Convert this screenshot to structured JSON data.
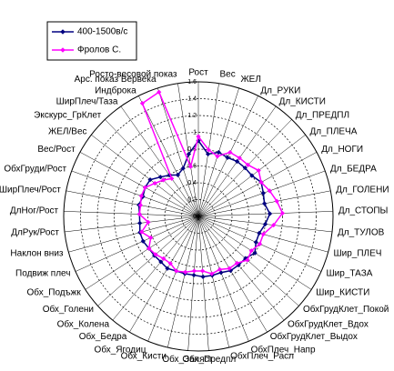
{
  "chart_data": {
    "type": "radar",
    "categories": [
      "Рост",
      "Вес",
      "ЖЕЛ",
      "Дл_РУКИ",
      "Дл_КИСТИ",
      "Дл_ПРЕДПЛ",
      "Дл_ПЛЕЧА",
      "Дл_НОГИ",
      "Дл_БЕДРА",
      "Дл_ГОЛЕНИ",
      "Дл_СТОПЫ",
      "Дл_ТУЛОВ",
      "Шир_ПЛЕЧ",
      "Шир_ТАЗА",
      "Шир_КИСТИ",
      "ОбхГрудКлет_Покой",
      "ОбхГрудКлет_Вдох",
      "ОбхГрудКлет_Выдох",
      "ОбхПлеч_Напр",
      "ОбхПлеч_Расл",
      "Обх_Предпл",
      "Обх_Запяст",
      "Обх_Кисти",
      "Обх_Ягодиц",
      "Обх_Бедра",
      "Обх_Колена",
      "Обх_Голени",
      "Обх_Подъжк",
      "Подвиж плеч",
      "Наклон вниз",
      "ДлРук/Рост",
      "ДлНог/Рост",
      "ШирПлеч/Рост",
      "ОбхГруди/Рост",
      "Вес/Рост",
      "ЖЕЛ/Вес",
      "Экскурс_ГрКлет",
      "ШирПлеч/Таза",
      "Индброка",
      "Арс. показ Вервека",
      "Росто-весовой показ"
    ],
    "series": [
      {
        "name": "400-1500в/с",
        "color": "#000080",
        "marker": "diamond",
        "values": [
          0.9,
          0.75,
          0.8,
          0.78,
          0.8,
          0.8,
          0.8,
          0.85,
          0.82,
          0.8,
          0.85,
          0.8,
          0.75,
          0.75,
          0.8,
          0.75,
          0.75,
          0.75,
          0.72,
          0.72,
          0.72,
          0.7,
          0.7,
          0.7,
          0.72,
          0.7,
          0.7,
          0.7,
          0.72,
          0.72,
          0.7,
          0.7,
          0.72,
          0.7,
          0.72,
          0.72,
          0.65,
          0.6,
          0.55,
          0.6,
          0.75
        ]
      },
      {
        "name": "Фролов С.",
        "color": "#ff00ff",
        "marker": "diamond",
        "values": [
          0.95,
          0.8,
          0.75,
          0.85,
          0.85,
          0.85,
          0.9,
          0.85,
          0.9,
          0.95,
          1.0,
          0.9,
          0.8,
          0.8,
          0.75,
          0.78,
          0.72,
          0.72,
          0.68,
          0.7,
          0.65,
          0.65,
          0.68,
          0.7,
          0.65,
          0.65,
          0.68,
          0.7,
          0.62,
          0.7,
          0.6,
          0.7,
          0.7,
          0.72,
          0.72,
          0.65,
          0.6,
          0.55,
          1.5,
          1.55,
          0.6
        ]
      }
    ],
    "ylim": [
      0,
      1.6
    ],
    "yticks": [
      0,
      0.2,
      0.4,
      0.6,
      0.8,
      1,
      1.2,
      1.4,
      1.6
    ],
    "grid": true,
    "legend": "top-left"
  }
}
